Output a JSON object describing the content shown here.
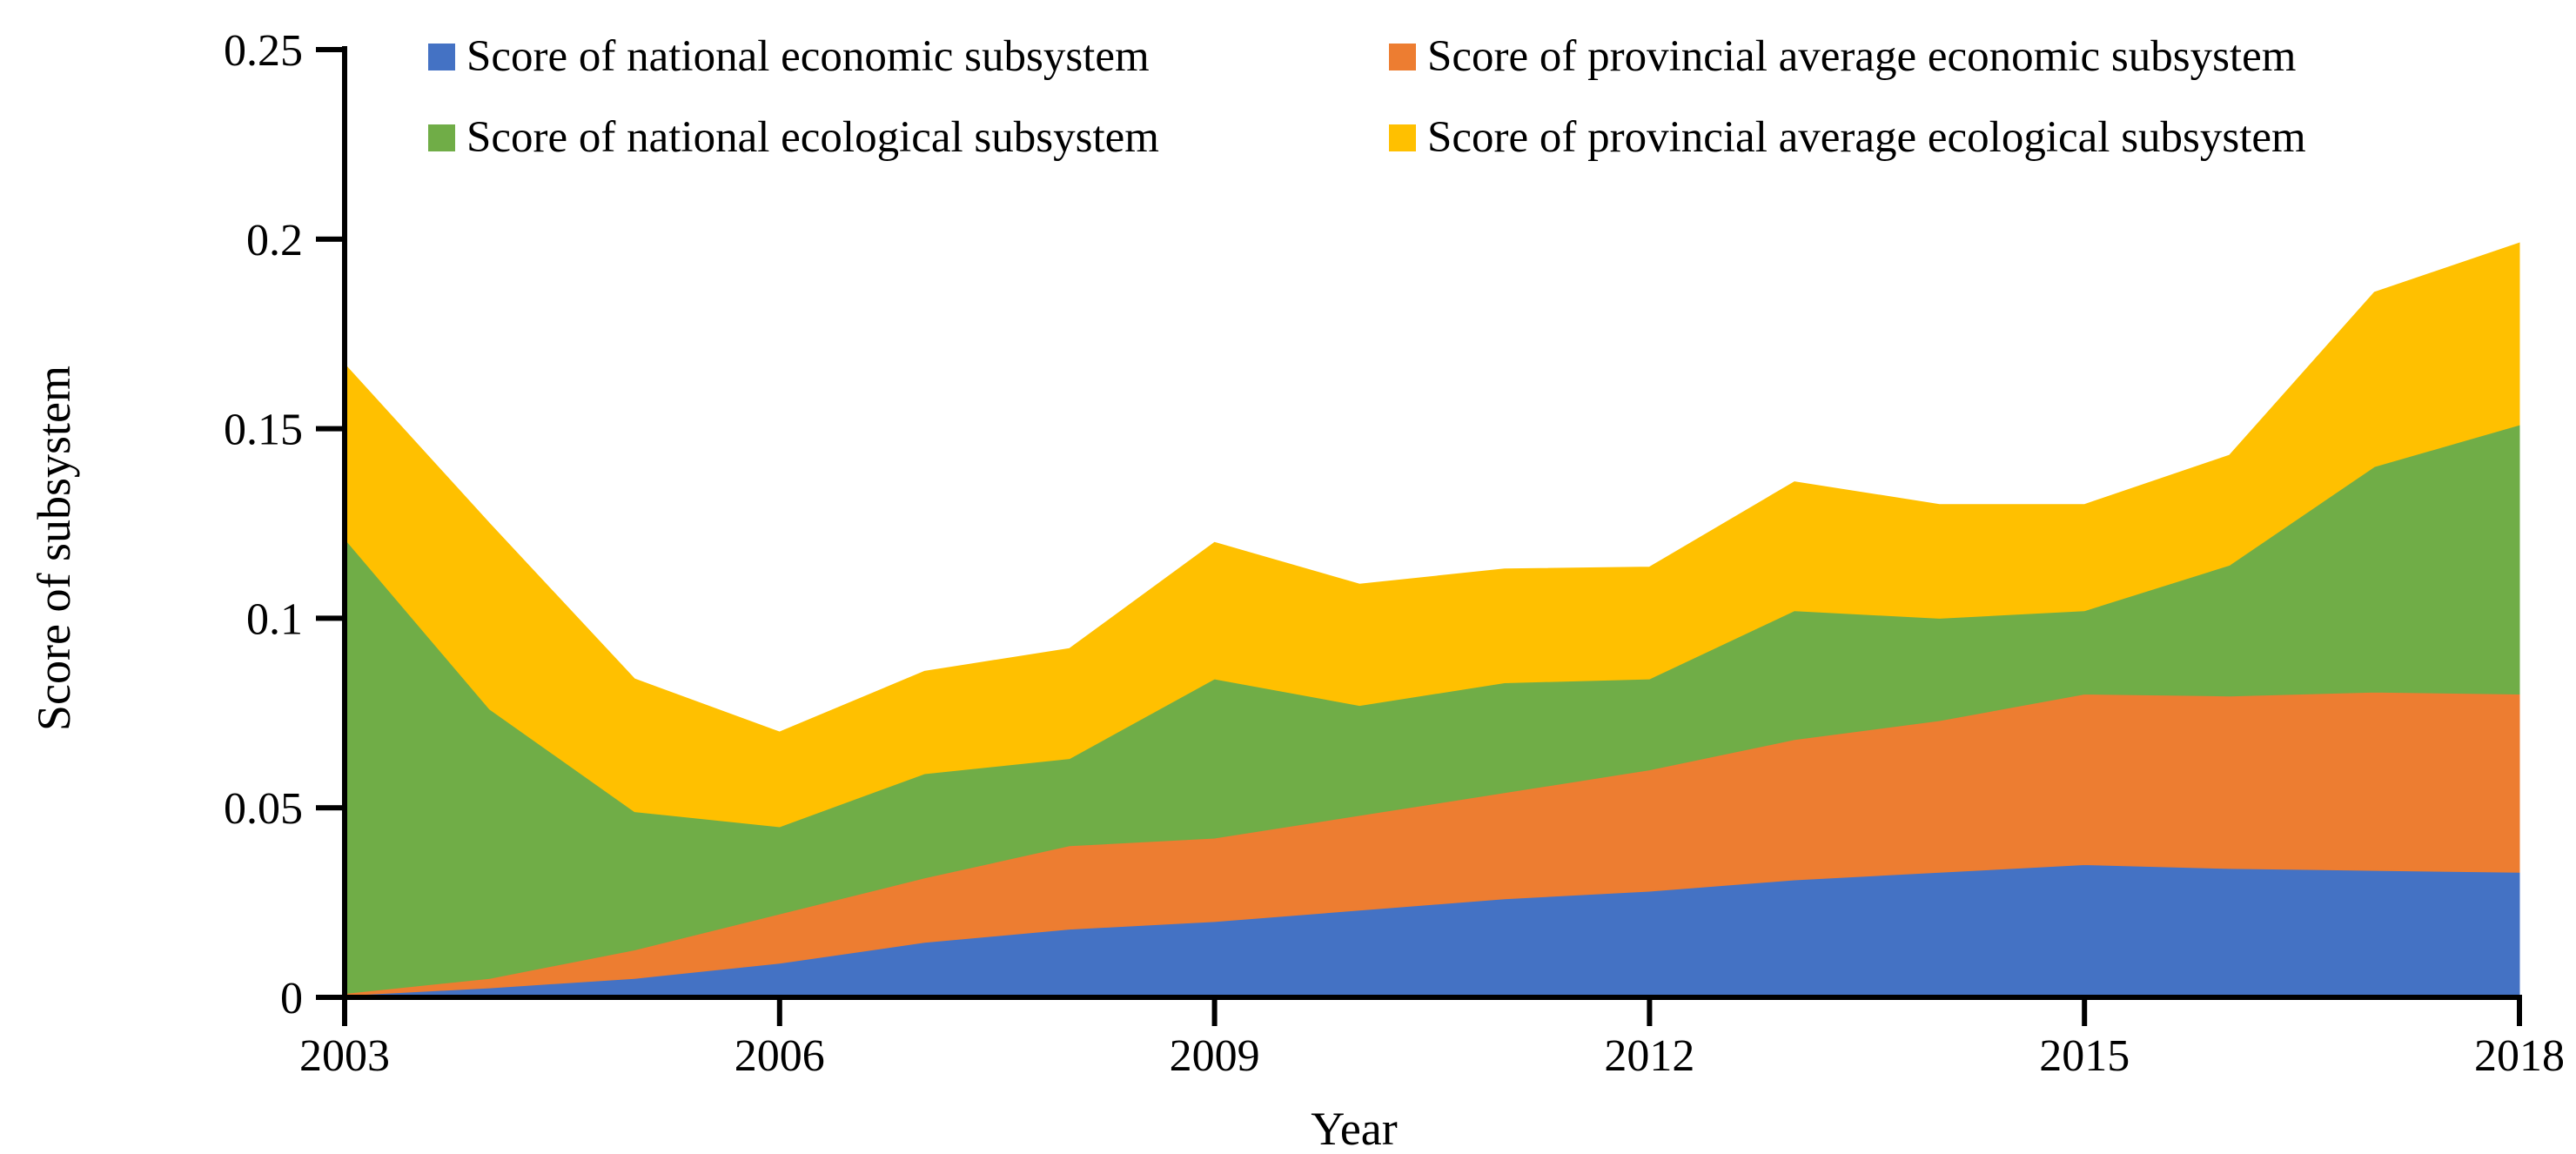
{
  "figure": {
    "background": "#ffffff",
    "text_color": "#000000",
    "axis_color": "#000000"
  },
  "axes": {
    "y_title": "Score of subsystem",
    "x_title": "Year"
  },
  "chart_data": {
    "type": "area",
    "stacked": true,
    "title": "",
    "xlabel": "Year",
    "ylabel": "Score of subsystem",
    "grid": false,
    "legend_position": "top-inside-two-columns",
    "xlim": [
      2003,
      2018
    ],
    "ylim": [
      0,
      0.25
    ],
    "x_tick_labels": [
      "2003",
      "2006",
      "2009",
      "2012",
      "2015",
      "2018"
    ],
    "x_tick_values": [
      2003,
      2006,
      2009,
      2012,
      2015,
      2018
    ],
    "y_tick_labels": [
      "0",
      "0.05",
      "0.1",
      "0.15",
      "0.2",
      "0.25"
    ],
    "y_tick_values": [
      0,
      0.05,
      0.1,
      0.15,
      0.2,
      0.25
    ],
    "x": [
      2003,
      2004,
      2005,
      2006,
      2007,
      2008,
      2009,
      2010,
      2011,
      2012,
      2013,
      2014,
      2015,
      2016,
      2017,
      2018
    ],
    "series": [
      {
        "name": "Score of national economic subsystem",
        "color": "#4472C4",
        "values": [
          0.0005,
          0.0025,
          0.005,
          0.009,
          0.0145,
          0.018,
          0.02,
          0.023,
          0.026,
          0.028,
          0.031,
          0.033,
          0.035,
          0.034,
          0.0335,
          0.033
        ]
      },
      {
        "name": "Score of provincial average economic subsystem",
        "color": "#ED7D31",
        "values": [
          0.0005,
          0.0025,
          0.0075,
          0.013,
          0.017,
          0.022,
          0.022,
          0.025,
          0.028,
          0.032,
          0.037,
          0.04,
          0.045,
          0.0455,
          0.047,
          0.047
        ]
      },
      {
        "name": "Score of national ecological subsystem",
        "color": "#70AD47",
        "values": [
          0.12,
          0.071,
          0.0365,
          0.023,
          0.0275,
          0.023,
          0.042,
          0.029,
          0.029,
          0.024,
          0.034,
          0.027,
          0.022,
          0.0345,
          0.0595,
          0.071
        ]
      },
      {
        "name": "Score of provincial average ecological subsystem",
        "color": "#FFC000",
        "values": [
          0.046,
          0.049,
          0.035,
          0.025,
          0.027,
          0.029,
          0.036,
          0.032,
          0.03,
          0.0295,
          0.034,
          0.03,
          0.028,
          0.029,
          0.046,
          0.048
        ]
      }
    ]
  }
}
